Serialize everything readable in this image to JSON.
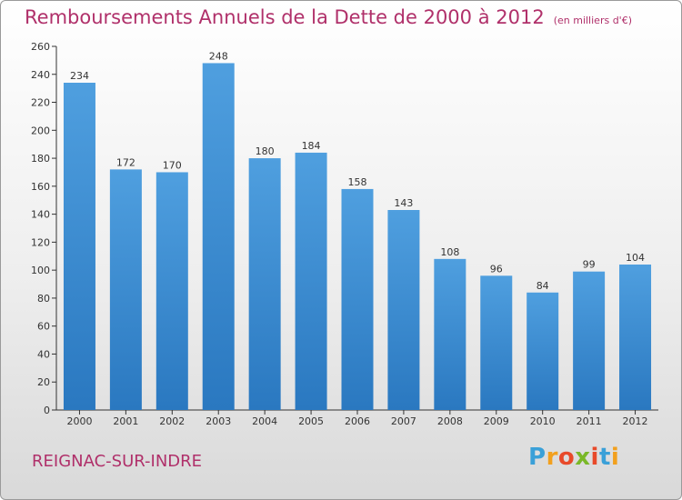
{
  "header": {
    "title": "Remboursements Annuels de la Dette de 2000 à 2012",
    "unit": "(en milliers d'€)"
  },
  "footer": {
    "commune": "REIGNAC-SUR-INDRE",
    "logo_letters": [
      "P",
      "r",
      "o",
      "x",
      "i",
      "t",
      "i"
    ],
    "logo_colors": [
      "#3aa0d8",
      "#f2a01e",
      "#e84a2a",
      "#7ab828",
      "#e84a2a",
      "#3aa0d8",
      "#f2a01e"
    ]
  },
  "colors": {
    "bar": "#4f9fdf",
    "bar_dark": "#2a78c0",
    "axis": "#333333",
    "text": "#333333"
  },
  "chart_data": {
    "type": "bar",
    "title": "Remboursements Annuels de la Dette de 2000 à 2012",
    "categories": [
      "2000",
      "2001",
      "2002",
      "2003",
      "2004",
      "2005",
      "2006",
      "2007",
      "2008",
      "2009",
      "2010",
      "2011",
      "2012"
    ],
    "values": [
      234,
      172,
      170,
      248,
      180,
      184,
      158,
      143,
      108,
      96,
      84,
      99,
      104
    ],
    "ylim": [
      0,
      260
    ],
    "yticks": [
      0,
      20,
      40,
      60,
      80,
      100,
      120,
      140,
      160,
      180,
      200,
      220,
      240,
      260
    ],
    "grid": false,
    "data_labels": true
  }
}
